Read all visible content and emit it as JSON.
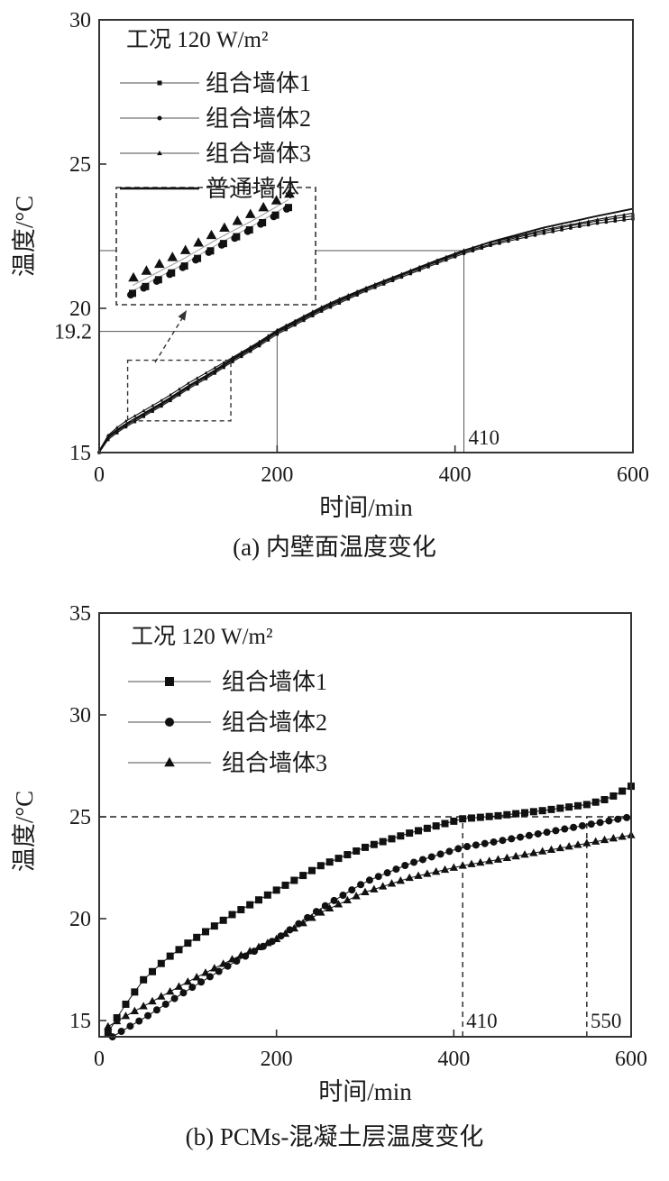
{
  "figure": {
    "background": "#ffffff",
    "line_color": "#111111",
    "axis_color": "#333333",
    "legend_line_color": "#888888",
    "annotation_line_color": "#555555"
  },
  "chart_data": [
    {
      "id": "a",
      "type": "line",
      "title": "(a) 内壁面温度变化",
      "xlabel": "时间/min",
      "ylabel": "温度/°C",
      "xlim": [
        0,
        600
      ],
      "ylim": [
        15,
        30
      ],
      "xticks": [
        0,
        200,
        400,
        600
      ],
      "yticks": [
        15,
        20,
        25,
        30
      ],
      "grid": false,
      "legend_position": "upper-left-inside",
      "legend_title": "工况 120 W/m²",
      "series": [
        {
          "name": "组合墙体1",
          "marker": "square",
          "x": [
            0,
            5,
            10,
            25,
            50,
            75,
            100,
            125,
            150,
            175,
            200,
            225,
            250,
            275,
            300,
            325,
            350,
            375,
            410,
            440,
            470,
            500,
            530,
            560,
            600
          ],
          "y": [
            15.0,
            15.3,
            15.45,
            15.8,
            16.25,
            16.7,
            17.2,
            17.65,
            18.15,
            18.6,
            19.1,
            19.5,
            19.9,
            20.25,
            20.6,
            20.9,
            21.2,
            21.5,
            21.9,
            22.18,
            22.4,
            22.6,
            22.78,
            22.95,
            23.1
          ]
        },
        {
          "name": "组合墙体2",
          "marker": "circle",
          "x": [
            0,
            5,
            10,
            25,
            50,
            75,
            100,
            125,
            150,
            175,
            200,
            225,
            250,
            275,
            300,
            325,
            350,
            375,
            410,
            440,
            470,
            500,
            530,
            560,
            600
          ],
          "y": [
            15.0,
            15.32,
            15.5,
            15.85,
            16.3,
            16.75,
            17.25,
            17.7,
            18.2,
            18.65,
            19.15,
            19.55,
            19.95,
            20.3,
            20.65,
            20.95,
            21.25,
            21.55,
            21.95,
            22.22,
            22.46,
            22.67,
            22.86,
            23.03,
            23.2
          ]
        },
        {
          "name": "组合墙体3",
          "marker": "triangle",
          "x": [
            0,
            5,
            10,
            25,
            50,
            75,
            100,
            125,
            150,
            175,
            200,
            225,
            250,
            275,
            300,
            325,
            350,
            375,
            410,
            440,
            470,
            500,
            530,
            560,
            600
          ],
          "y": [
            15.05,
            15.4,
            15.6,
            16.0,
            16.45,
            16.9,
            17.4,
            17.85,
            18.3,
            18.75,
            19.25,
            19.65,
            20.05,
            20.4,
            20.72,
            21.02,
            21.32,
            21.62,
            22.02,
            22.28,
            22.5,
            22.72,
            22.9,
            23.08,
            23.3
          ]
        },
        {
          "name": "普通墙体",
          "marker": "none",
          "x": [
            0,
            5,
            10,
            25,
            50,
            75,
            100,
            125,
            150,
            175,
            200,
            225,
            250,
            275,
            300,
            325,
            350,
            375,
            410,
            440,
            470,
            500,
            530,
            560,
            600
          ],
          "y": [
            15.05,
            15.35,
            15.55,
            15.9,
            16.35,
            16.8,
            17.3,
            17.75,
            18.25,
            18.7,
            19.2,
            19.6,
            20.0,
            20.35,
            20.7,
            21.0,
            21.3,
            21.6,
            22.0,
            22.3,
            22.55,
            22.8,
            23.0,
            23.2,
            23.45
          ]
        }
      ],
      "annotations": {
        "callouts": [
          {
            "x": 200,
            "y": 19.2,
            "label": "19.2",
            "label_axis": "y"
          },
          {
            "x": 410,
            "y": 22.0,
            "label": "410",
            "label_axis": "x"
          }
        ],
        "inset": {
          "x_range": [
            40,
            148
          ],
          "y_range": [
            16.1,
            18.2
          ]
        }
      }
    },
    {
      "id": "b",
      "type": "line",
      "title": "(b) PCMs-混凝土层温度变化",
      "xlabel": "时间/min",
      "ylabel": "温度/°C",
      "xlim": [
        0,
        600
      ],
      "ylim": [
        15,
        35
      ],
      "xticks": [
        0,
        200,
        400,
        600
      ],
      "yticks": [
        15,
        20,
        25,
        30,
        35
      ],
      "grid": false,
      "legend_position": "upper-left-inside",
      "legend_title": "工况 120 W/m²",
      "series": [
        {
          "name": "组合墙体1",
          "marker": "square",
          "x": [
            10,
            25,
            50,
            75,
            100,
            125,
            150,
            200,
            250,
            300,
            350,
            410,
            450,
            500,
            550,
            575,
            600
          ],
          "y": [
            14.4,
            15.5,
            17.0,
            18.0,
            18.8,
            19.5,
            20.2,
            21.4,
            22.6,
            23.5,
            24.2,
            24.9,
            25.05,
            25.3,
            25.6,
            25.9,
            26.5
          ]
        },
        {
          "name": "组合墙体2",
          "marker": "circle",
          "x": [
            15,
            30,
            50,
            75,
            100,
            150,
            200,
            250,
            300,
            350,
            410,
            450,
            500,
            550,
            600
          ],
          "y": [
            14.2,
            14.6,
            15.1,
            15.8,
            16.5,
            17.8,
            19.0,
            20.5,
            21.8,
            22.7,
            23.5,
            23.8,
            24.2,
            24.6,
            25.0
          ]
        },
        {
          "name": "组合墙体3",
          "marker": "triangle",
          "x": [
            10,
            25,
            50,
            75,
            100,
            150,
            200,
            250,
            300,
            350,
            410,
            450,
            500,
            550,
            600
          ],
          "y": [
            14.7,
            15.1,
            15.7,
            16.3,
            16.9,
            18.0,
            19.0,
            20.3,
            21.3,
            22.0,
            22.6,
            22.9,
            23.3,
            23.7,
            24.1
          ]
        }
      ],
      "annotations": {
        "hlines": [
          {
            "y": 25
          }
        ],
        "vlines": [
          {
            "x": 410,
            "label": "410"
          },
          {
            "x": 550,
            "label": "550"
          }
        ],
        "vlines_top": 25
      }
    }
  ]
}
